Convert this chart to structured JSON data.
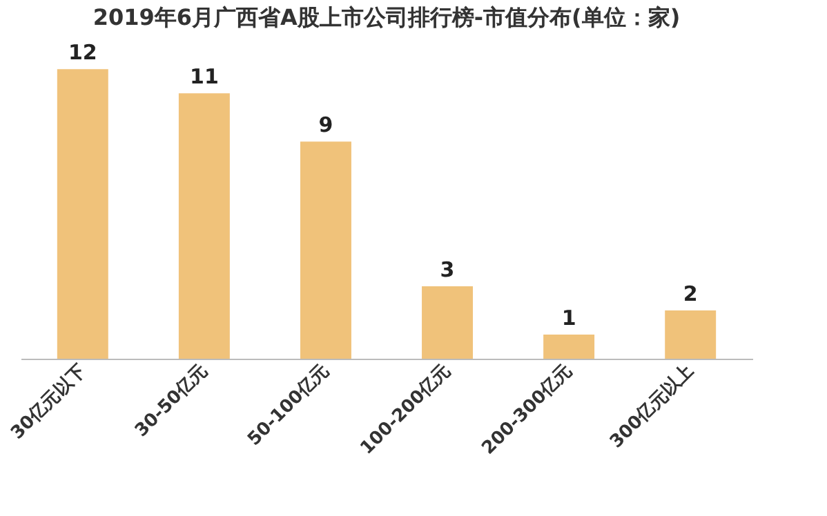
{
  "chart_data": {
    "type": "bar",
    "title": "2019年6月广西省A股上市公司排行榜-市值分布(单位：家)",
    "categories": [
      "30亿元以下",
      "30-50亿元",
      "50-100亿元",
      "100-200亿元",
      "200-300亿元",
      "300亿元以上"
    ],
    "values": [
      12,
      11,
      9,
      3,
      1,
      2
    ],
    "color": "#f0c27a",
    "data_labels": true,
    "grid": false
  }
}
